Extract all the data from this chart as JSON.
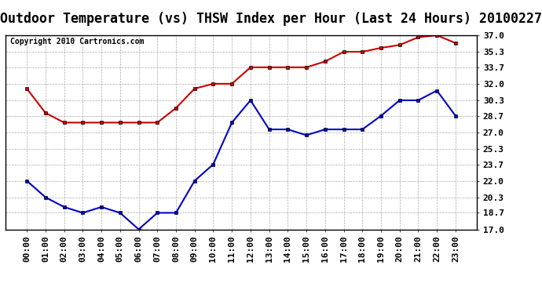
{
  "title": "Outdoor Temperature (vs) THSW Index per Hour (Last 24 Hours) 20100227",
  "copyright": "Copyright 2010 Cartronics.com",
  "x_labels": [
    "00:00",
    "01:00",
    "02:00",
    "03:00",
    "04:00",
    "05:00",
    "06:00",
    "07:00",
    "08:00",
    "09:00",
    "10:00",
    "11:00",
    "12:00",
    "13:00",
    "14:00",
    "15:00",
    "16:00",
    "17:00",
    "18:00",
    "19:00",
    "20:00",
    "21:00",
    "22:00",
    "23:00"
  ],
  "thsw_data": [
    31.5,
    29.0,
    28.0,
    28.0,
    28.0,
    28.0,
    28.0,
    28.0,
    29.5,
    31.5,
    32.0,
    32.0,
    33.7,
    33.7,
    33.7,
    33.7,
    34.3,
    35.3,
    35.3,
    35.7,
    36.0,
    36.8,
    37.0,
    36.2
  ],
  "temp_data": [
    22.0,
    20.3,
    19.3,
    18.7,
    19.3,
    18.7,
    17.0,
    18.7,
    18.7,
    22.0,
    23.7,
    28.0,
    30.3,
    27.3,
    27.3,
    26.7,
    27.3,
    27.3,
    27.3,
    28.7,
    30.3,
    30.3,
    31.3,
    28.7
  ],
  "thsw_color": "#cc0000",
  "temp_color": "#0000cc",
  "bg_color": "#ffffff",
  "grid_color": "#aaaaaa",
  "y_ticks": [
    17.0,
    18.7,
    20.3,
    22.0,
    23.7,
    25.3,
    27.0,
    28.7,
    30.3,
    32.0,
    33.7,
    35.3,
    37.0
  ],
  "ylim_min": 17.0,
  "ylim_max": 37.0,
  "title_fontsize": 12,
  "copyright_fontsize": 7,
  "tick_fontsize": 8
}
